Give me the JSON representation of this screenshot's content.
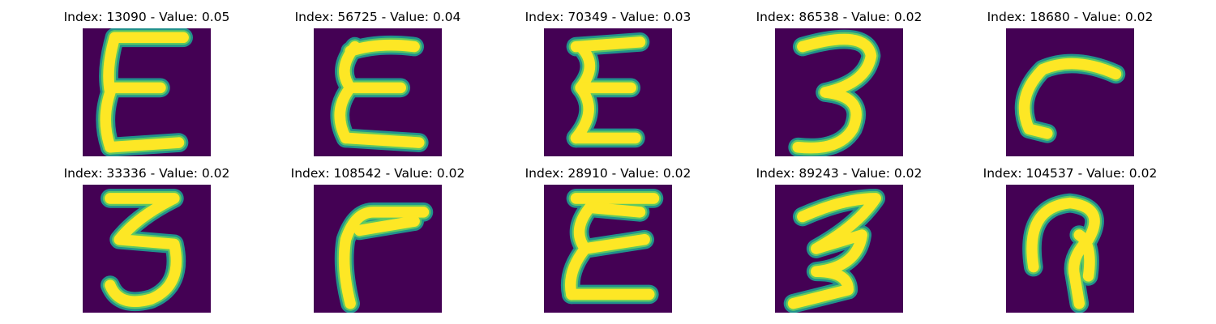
{
  "colors": {
    "background": "#440154",
    "edge": "#21918c",
    "stroke": "#fde725",
    "mid": "#5ec962"
  },
  "panels": [
    {
      "title": "Index: 13090 - Value: 0.05",
      "glyph": "E-style"
    },
    {
      "title": "Index: 56725 - Value: 0.04",
      "glyph": "E-style"
    },
    {
      "title": "Index: 70349 - Value: 0.03",
      "glyph": "E-style"
    },
    {
      "title": "Index: 86538 - Value: 0.02",
      "glyph": "3-style"
    },
    {
      "title": "Index: 18680 - Value: 0.02",
      "glyph": "hook"
    },
    {
      "title": "Index: 33336 - Value: 0.02",
      "glyph": "3-style"
    },
    {
      "title": "Index: 108542 - Value: 0.02",
      "glyph": "r-style"
    },
    {
      "title": "Index: 28910 - Value: 0.02",
      "glyph": "E-style"
    },
    {
      "title": "Index: 89243 - Value: 0.02",
      "glyph": "3-style"
    },
    {
      "title": "Index: 104537 - Value: 0.02",
      "glyph": "loop"
    }
  ]
}
